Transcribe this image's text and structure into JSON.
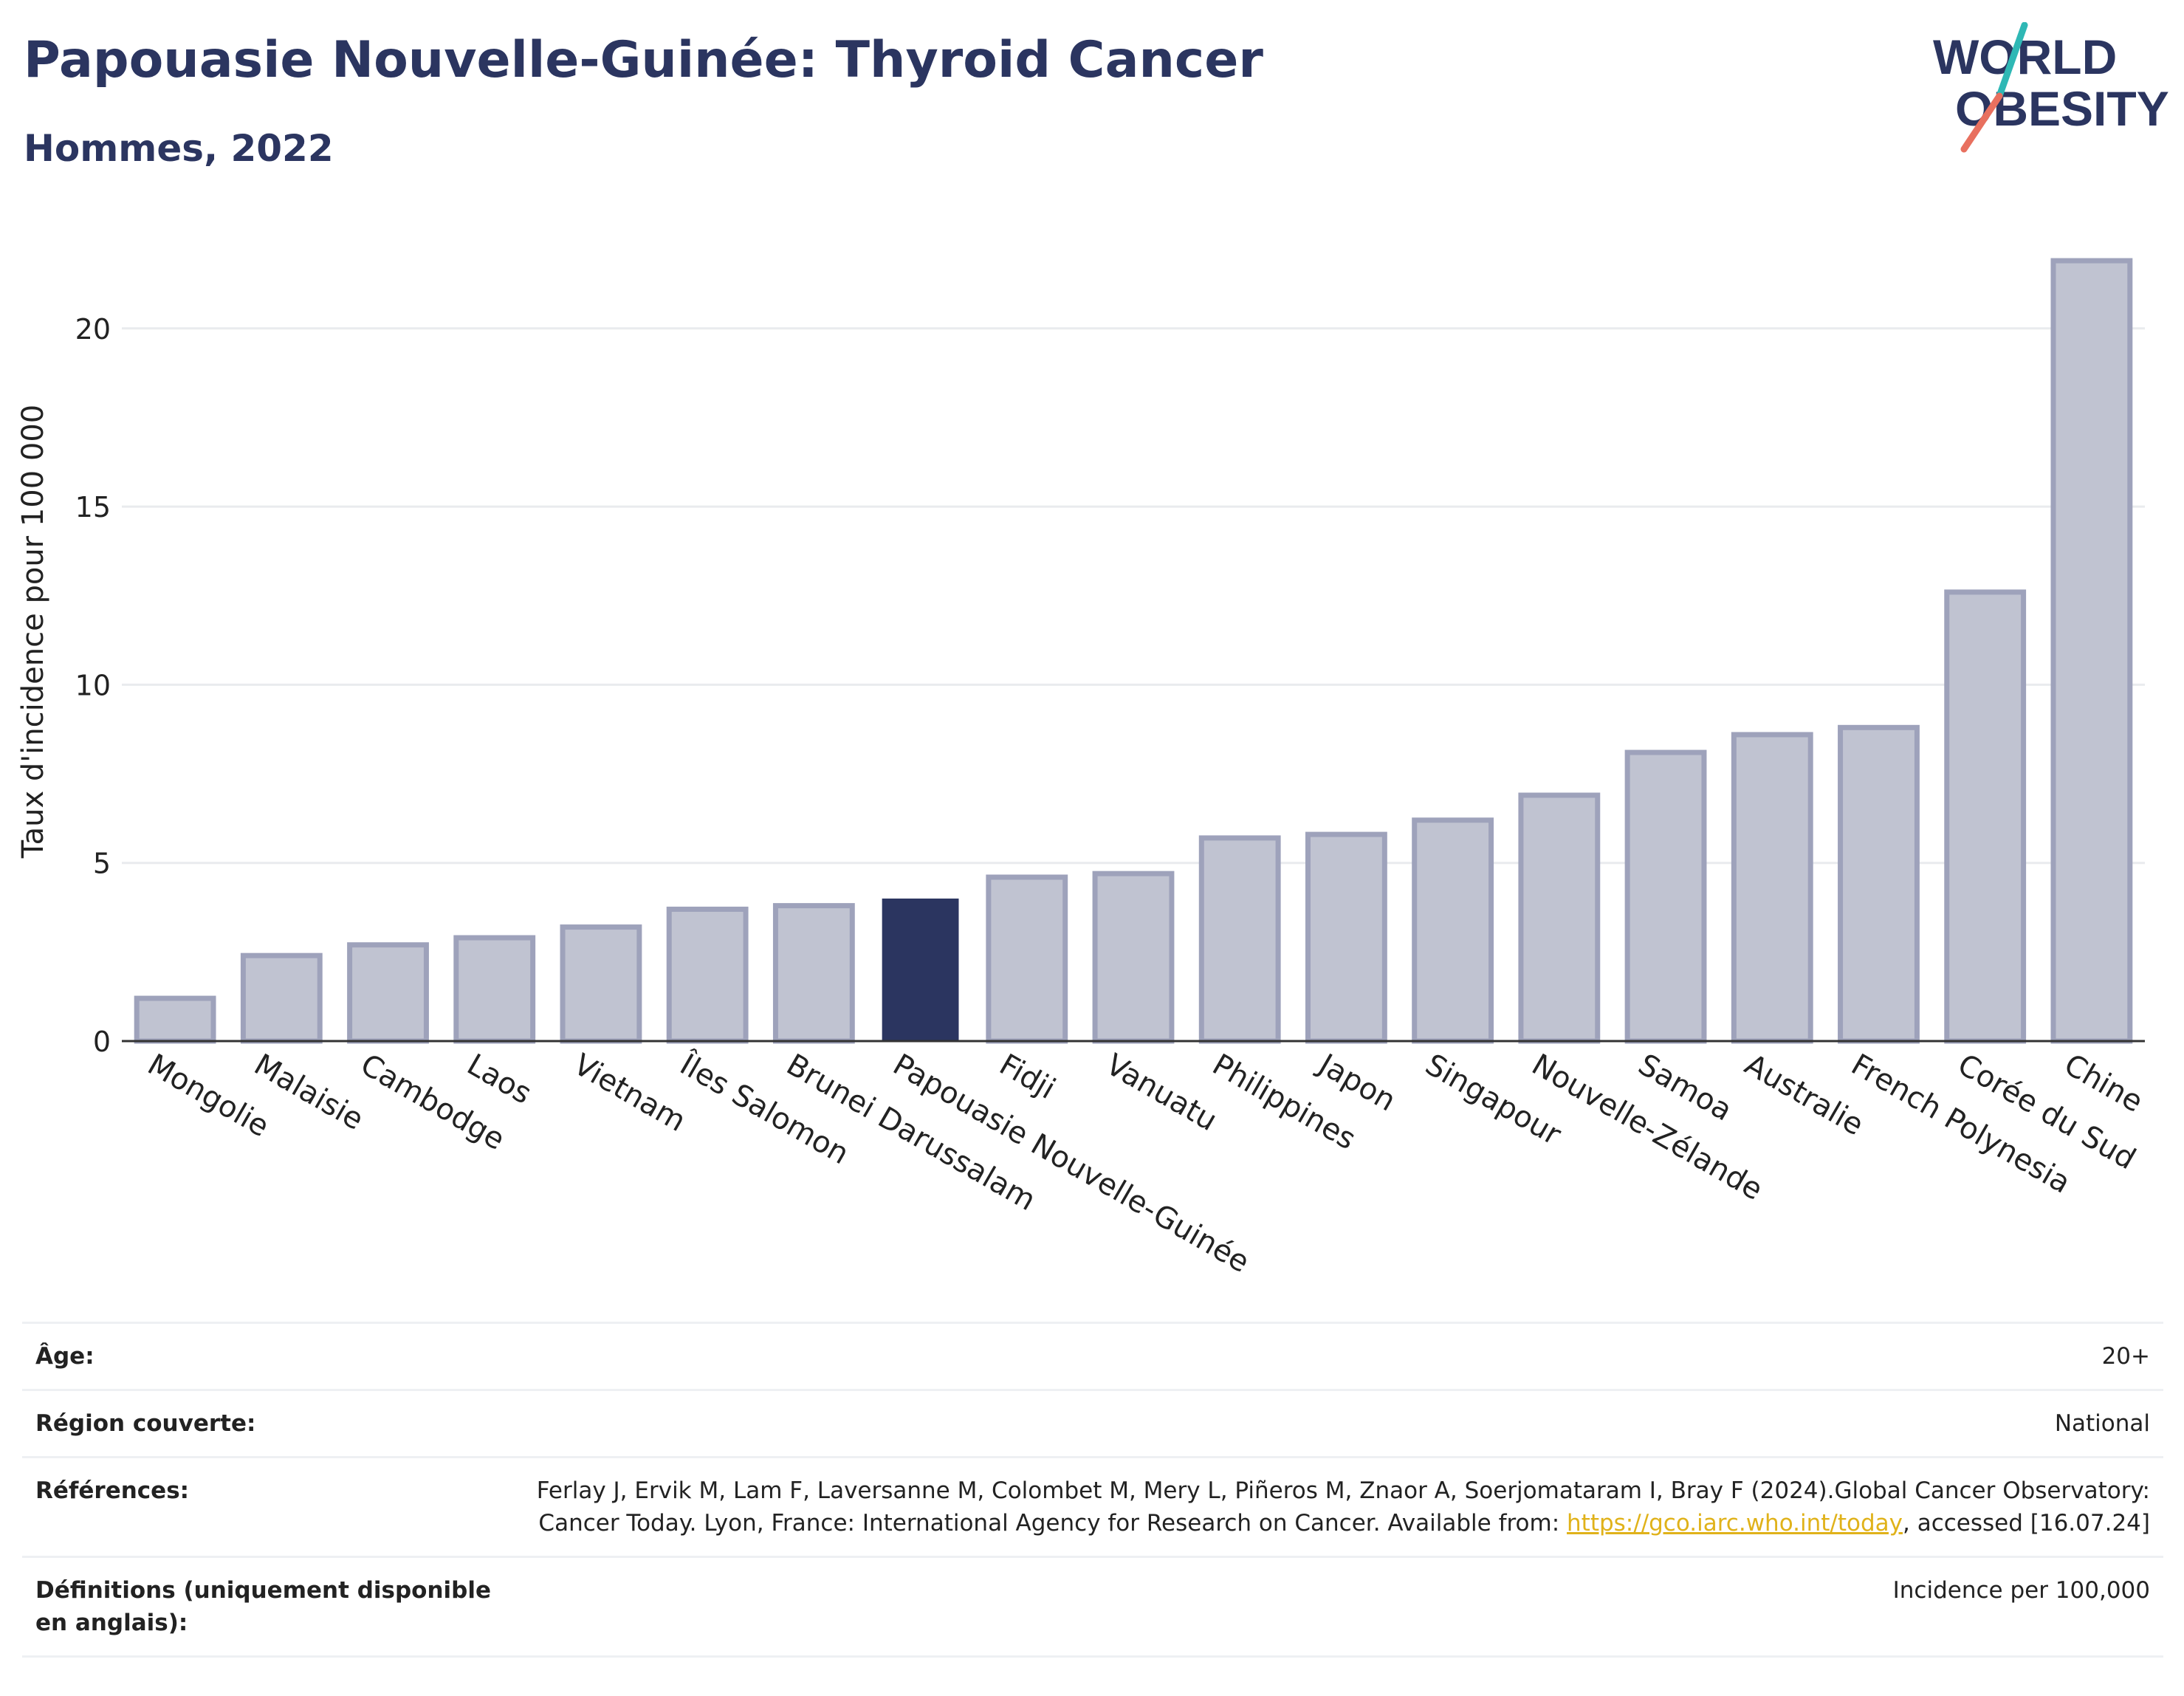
{
  "header": {
    "title": "Papouasie Nouvelle-Guinée: Thyroid Cancer",
    "subtitle": "Hommes, 2022",
    "logo_line1": "WORLD",
    "logo_line2": "OBESITY"
  },
  "colors": {
    "highlight": "#2b3560",
    "bar_fill": "#c0c3d1",
    "bar_stroke": "#9ea2bb",
    "grid": "#e9ebee",
    "axis": "#333333",
    "logo_teal": "#2fb8b5",
    "logo_coral": "#e8705f",
    "link": "#e0b21a"
  },
  "chart_data": {
    "type": "bar",
    "title": "Papouasie Nouvelle-Guinée: Thyroid Cancer",
    "subtitle": "Hommes, 2022",
    "xlabel": "",
    "ylabel": "Taux d'incidence pour 100 000",
    "ylim": [
      0,
      23
    ],
    "yticks": [
      0,
      5,
      10,
      15,
      20
    ],
    "grid": true,
    "highlight": "Papouasie Nouvelle-Guinée",
    "categories": [
      "Mongolie",
      "Malaisie",
      "Cambodge",
      "Laos",
      "Vietnam",
      "Îles Salomon",
      "Brunei Darussalam",
      "Papouasie Nouvelle-Guinée",
      "Fidji",
      "Vanuatu",
      "Philippines",
      "Japon",
      "Singapour",
      "Nouvelle-Zélande",
      "Samoa",
      "Australie",
      "French Polynesia",
      "Corée du Sud",
      "Chine"
    ],
    "values": [
      1.2,
      2.4,
      2.7,
      2.9,
      3.2,
      3.7,
      3.8,
      4.0,
      4.6,
      4.7,
      5.7,
      5.8,
      6.2,
      6.9,
      8.1,
      8.6,
      8.8,
      12.6,
      21.9
    ]
  },
  "meta": [
    {
      "label": "Âge:",
      "value": "20+"
    },
    {
      "label": "Région couverte:",
      "value": "National"
    },
    {
      "label": "Références:",
      "value_pre": "Ferlay J, Ervik M, Lam F, Laversanne M, Colombet M, Mery L, Piñeros M, Znaor A, Soerjomataram I, Bray F (2024).Global Cancer Observatory: Cancer Today. Lyon, France: International Agency for Research on Cancer. Available from: ",
      "link": "https://gco.iarc.who.int/today",
      "value_post": ", accessed [16.07.24]"
    },
    {
      "label": "Définitions (uniquement disponible en anglais):",
      "value": "Incidence per 100,000"
    }
  ]
}
